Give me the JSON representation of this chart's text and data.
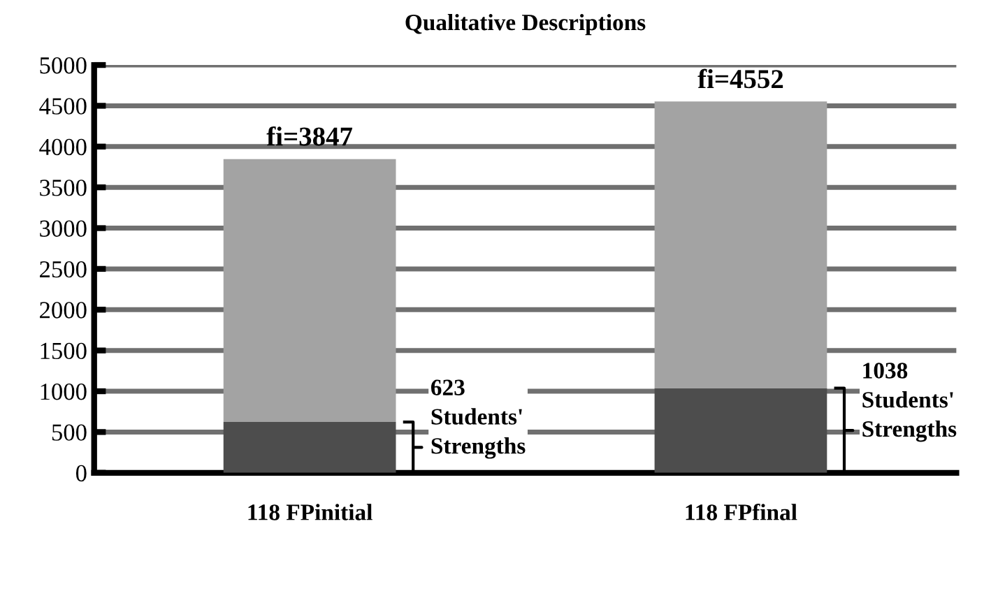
{
  "chart_data": {
    "type": "bar",
    "title": "Qualitative Descriptions",
    "stacked": true,
    "categories": [
      "118 FPinitial",
      "118 FPfinal"
    ],
    "series": [
      {
        "color": "#4d4d4d",
        "values": [
          623,
          1038
        ]
      },
      {
        "color": "#a3a3a3",
        "values": [
          3224,
          3514
        ]
      }
    ],
    "ylim": [
      0,
      5000
    ],
    "yticks": [
      0,
      500,
      1000,
      1500,
      2000,
      2500,
      3000,
      3500,
      4000,
      4500,
      5000
    ],
    "grid": "y",
    "annotations": [
      {
        "text": "fi=3847",
        "x": "118 FPinitial",
        "y": 3847
      },
      {
        "text": "fi=4552",
        "x": "118 FPfinal",
        "y": 4552
      },
      "623\nStudents'\nStrengths",
      "1038\nStudents'\nStrengths"
    ]
  }
}
